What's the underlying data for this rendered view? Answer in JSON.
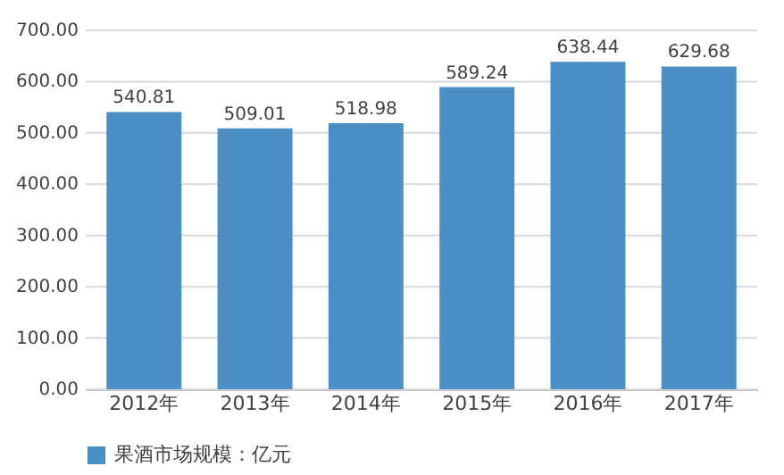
{
  "chart_data": {
    "type": "bar",
    "categories": [
      "2012年",
      "2013年",
      "2014年",
      "2015年",
      "2016年",
      "2017年"
    ],
    "series": [
      {
        "name": "果酒市场规模：亿元",
        "color": "#4a8fc8",
        "values": [
          540.81,
          509.01,
          518.98,
          589.24,
          638.44,
          629.68
        ]
      }
    ],
    "ylim": [
      0,
      700
    ],
    "yticks": [
      {
        "value": 0,
        "label": "0.00"
      },
      {
        "value": 100,
        "label": "100.00"
      },
      {
        "value": 200,
        "label": "200.00"
      },
      {
        "value": 300,
        "label": "300.00"
      },
      {
        "value": 400,
        "label": "400.00"
      },
      {
        "value": 500,
        "label": "500.00"
      },
      {
        "value": 600,
        "label": "600.00"
      },
      {
        "value": 700,
        "label": "700.00"
      }
    ],
    "grid": "y",
    "legend": "bottom",
    "data_labels": true
  }
}
